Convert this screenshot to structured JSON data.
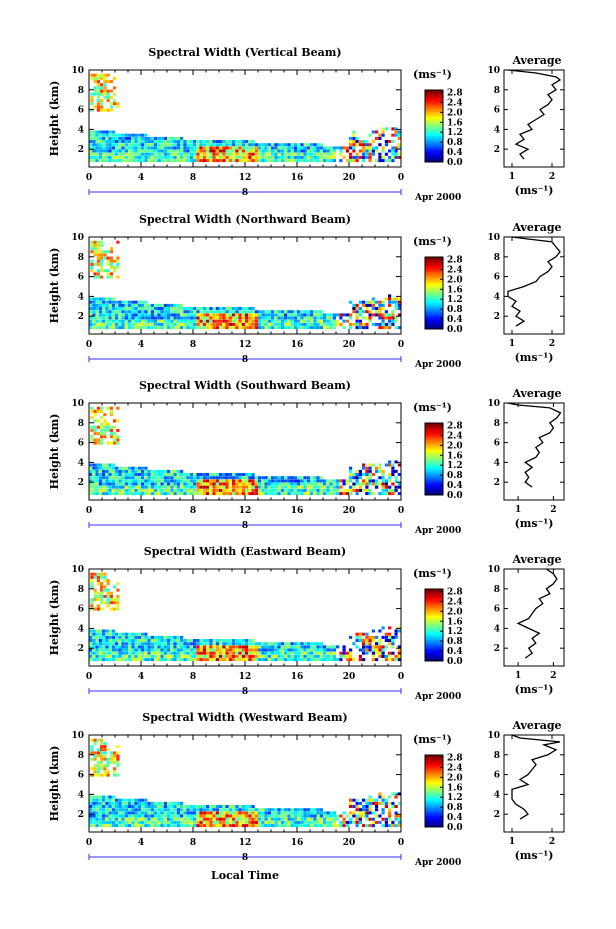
{
  "chart_data": {
    "type": "heatmap",
    "x_ticks": [
      "0",
      "4",
      "8",
      "12",
      "16",
      "20",
      "0"
    ],
    "y_ticks": [
      "2",
      "4",
      "6",
      "8",
      "10"
    ],
    "ylabel": "Height (km)",
    "xlabel": "Local Time",
    "date_marker": "8",
    "date_label": "Apr 2000",
    "colorbar": {
      "unit_label": "(ms⁻¹)",
      "ticks": [
        "0.0",
        "0.4",
        "0.8",
        "1.2",
        "1.6",
        "2.0",
        "2.4",
        "2.8"
      ],
      "range": [
        0,
        2.9
      ]
    },
    "average_panel": {
      "title": "Average",
      "xlabel": "(ms⁻¹)"
    },
    "panels": [
      {
        "title": "Spectral Width (Vertical Beam)",
        "avg_x_ticks": [
          "1",
          "2"
        ],
        "avg_xlim": [
          0.8,
          2.3
        ],
        "avg_profile": [
          [
            1.3,
            1.0
          ],
          [
            1.2,
            1.5
          ],
          [
            1.4,
            2.0
          ],
          [
            1.1,
            2.5
          ],
          [
            1.3,
            3.0
          ],
          [
            1.2,
            3.5
          ],
          [
            1.5,
            4.0
          ],
          [
            1.4,
            4.5
          ],
          [
            1.6,
            5.0
          ],
          [
            1.8,
            5.5
          ],
          [
            1.7,
            6.0
          ],
          [
            1.9,
            6.5
          ],
          [
            2.0,
            7.0
          ],
          [
            1.9,
            7.5
          ],
          [
            2.1,
            8.0
          ],
          [
            2.0,
            8.5
          ],
          [
            2.2,
            9.0
          ],
          [
            2.1,
            9.3
          ],
          [
            1.6,
            9.7
          ],
          [
            0.9,
            10.0
          ]
        ]
      },
      {
        "title": "Spectral Width (Northward Beam)",
        "avg_x_ticks": [
          "1",
          "2"
        ],
        "avg_xlim": [
          0.8,
          2.3
        ],
        "avg_profile": [
          [
            1.1,
            1.0
          ],
          [
            1.3,
            1.5
          ],
          [
            1.1,
            2.0
          ],
          [
            1.2,
            2.5
          ],
          [
            1.0,
            3.0
          ],
          [
            1.1,
            3.5
          ],
          [
            0.9,
            4.0
          ],
          [
            0.9,
            4.5
          ],
          [
            1.3,
            5.0
          ],
          [
            1.6,
            5.5
          ],
          [
            1.7,
            6.0
          ],
          [
            1.9,
            6.5
          ],
          [
            2.0,
            7.0
          ],
          [
            1.9,
            7.5
          ],
          [
            2.1,
            8.0
          ],
          [
            2.2,
            8.5
          ],
          [
            2.1,
            9.0
          ],
          [
            2.0,
            9.5
          ],
          [
            1.4,
            9.8
          ],
          [
            1.0,
            10.0
          ]
        ]
      },
      {
        "title": "Spectral Width (Southward Beam)",
        "avg_x_ticks": [
          "1",
          "2"
        ],
        "avg_xlim": [
          0.6,
          2.3
        ],
        "avg_profile": [
          [
            1.4,
            1.5
          ],
          [
            1.2,
            2.0
          ],
          [
            1.3,
            2.5
          ],
          [
            1.2,
            3.0
          ],
          [
            1.4,
            3.5
          ],
          [
            1.2,
            4.0
          ],
          [
            1.5,
            4.5
          ],
          [
            1.6,
            5.0
          ],
          [
            1.5,
            5.5
          ],
          [
            1.7,
            6.0
          ],
          [
            1.6,
            6.5
          ],
          [
            1.9,
            7.0
          ],
          [
            2.0,
            7.5
          ],
          [
            1.9,
            8.0
          ],
          [
            2.1,
            8.5
          ],
          [
            2.2,
            9.0
          ],
          [
            1.9,
            9.5
          ],
          [
            1.0,
            9.8
          ],
          [
            0.7,
            10.0
          ]
        ]
      },
      {
        "title": "Spectral Width (Eastward Beam)",
        "avg_x_ticks": [
          "1",
          "2"
        ],
        "avg_xlim": [
          0.6,
          2.3
        ],
        "avg_profile": [
          [
            1.2,
            1.0
          ],
          [
            1.4,
            1.5
          ],
          [
            1.3,
            2.0
          ],
          [
            1.5,
            2.5
          ],
          [
            1.4,
            3.0
          ],
          [
            1.6,
            3.5
          ],
          [
            1.3,
            4.0
          ],
          [
            1.0,
            4.5
          ],
          [
            1.3,
            5.0
          ],
          [
            1.4,
            5.5
          ],
          [
            1.5,
            6.0
          ],
          [
            1.7,
            6.5
          ],
          [
            1.6,
            7.0
          ],
          [
            1.9,
            7.5
          ],
          [
            1.8,
            8.0
          ],
          [
            2.0,
            8.5
          ],
          [
            2.1,
            9.0
          ],
          [
            2.0,
            9.5
          ],
          [
            1.8,
            10.0
          ]
        ]
      },
      {
        "title": "Spectral Width (Westward Beam)",
        "avg_x_ticks": [
          "1",
          "2"
        ],
        "avg_xlim": [
          0.8,
          2.3
        ],
        "avg_profile": [
          [
            1.2,
            1.5
          ],
          [
            1.4,
            2.0
          ],
          [
            1.3,
            2.5
          ],
          [
            1.1,
            3.0
          ],
          [
            1.0,
            3.5
          ],
          [
            1.0,
            4.0
          ],
          [
            1.0,
            4.5
          ],
          [
            1.4,
            5.0
          ],
          [
            1.2,
            5.5
          ],
          [
            1.4,
            6.0
          ],
          [
            1.5,
            6.5
          ],
          [
            1.6,
            7.0
          ],
          [
            1.5,
            7.5
          ],
          [
            1.9,
            8.0
          ],
          [
            2.1,
            8.5
          ],
          [
            1.8,
            9.0
          ],
          [
            2.2,
            9.3
          ],
          [
            1.2,
            9.7
          ],
          [
            1.0,
            10.0
          ]
        ]
      }
    ]
  }
}
